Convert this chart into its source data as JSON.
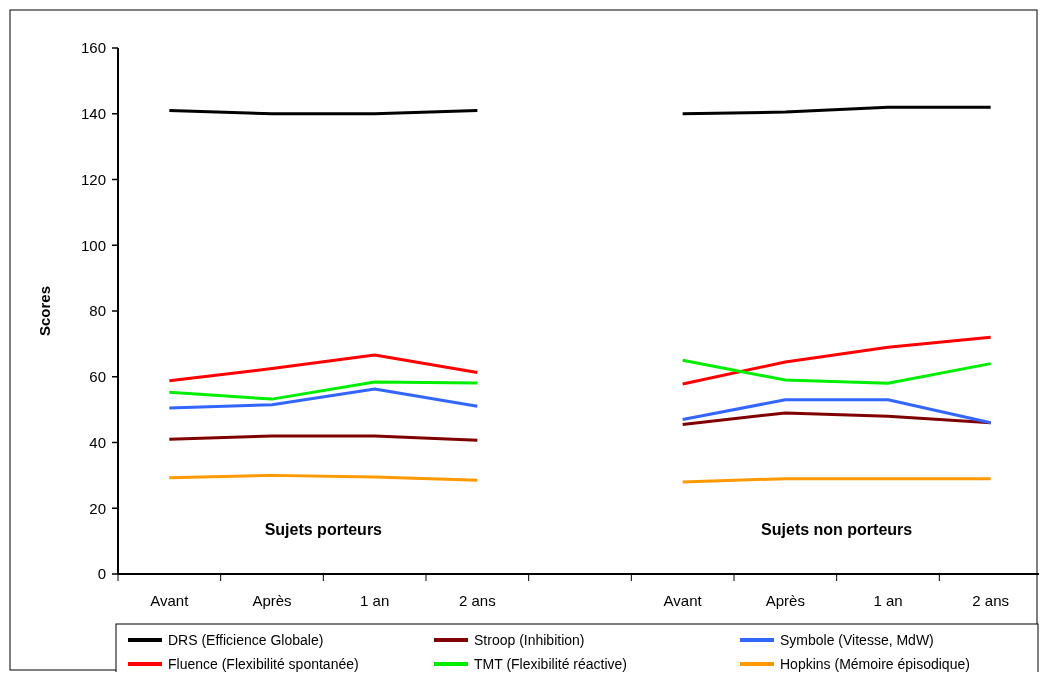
{
  "chart_data": {
    "type": "line",
    "ylabel": "Scores",
    "categories": [
      "Avant",
      "Après",
      "1 an",
      "2 ans",
      null,
      "Avant",
      "Après",
      "1 an",
      "2 ans"
    ],
    "ylim": [
      0,
      160
    ],
    "yticks": [
      0,
      20,
      40,
      60,
      80,
      100,
      120,
      140,
      160
    ],
    "grid": false,
    "legend": "bottom",
    "marker": "none",
    "line_style": "solid",
    "annotations": [
      "Sujets porteurs",
      "Sujets non porteurs"
    ],
    "series": [
      {
        "name": "DRS (Efficience Globale)",
        "color": "#000000",
        "values": [
          141,
          140,
          140,
          141,
          null,
          140,
          140.5,
          142,
          142
        ]
      },
      {
        "name": "Stroop (Inhibition)",
        "color": "#800000",
        "values": [
          41,
          42,
          42,
          40.7,
          null,
          45.5,
          49,
          48,
          46
        ]
      },
      {
        "name": "Symbole (Vitesse, MdW)",
        "color": "#3366ff",
        "values": [
          50.5,
          51.5,
          56.3,
          51,
          null,
          47,
          53,
          53,
          46
        ]
      },
      {
        "name": "Fluence (Flexibilité spontanée)",
        "color": "#ff0000",
        "values": [
          58.8,
          62.5,
          66.6,
          61.3,
          null,
          57.8,
          64.5,
          69,
          72
        ]
      },
      {
        "name": "TMT (Flexibilité réactive)",
        "color": "#00ee00",
        "values": [
          55.3,
          53.2,
          58.4,
          58.1,
          null,
          65,
          59,
          58,
          64
        ]
      },
      {
        "name": "Hopkins (Mémoire épisodique)",
        "color": "#ff9900",
        "values": [
          29.3,
          30,
          29.5,
          28.5,
          null,
          28,
          29,
          29,
          29
        ]
      }
    ]
  }
}
